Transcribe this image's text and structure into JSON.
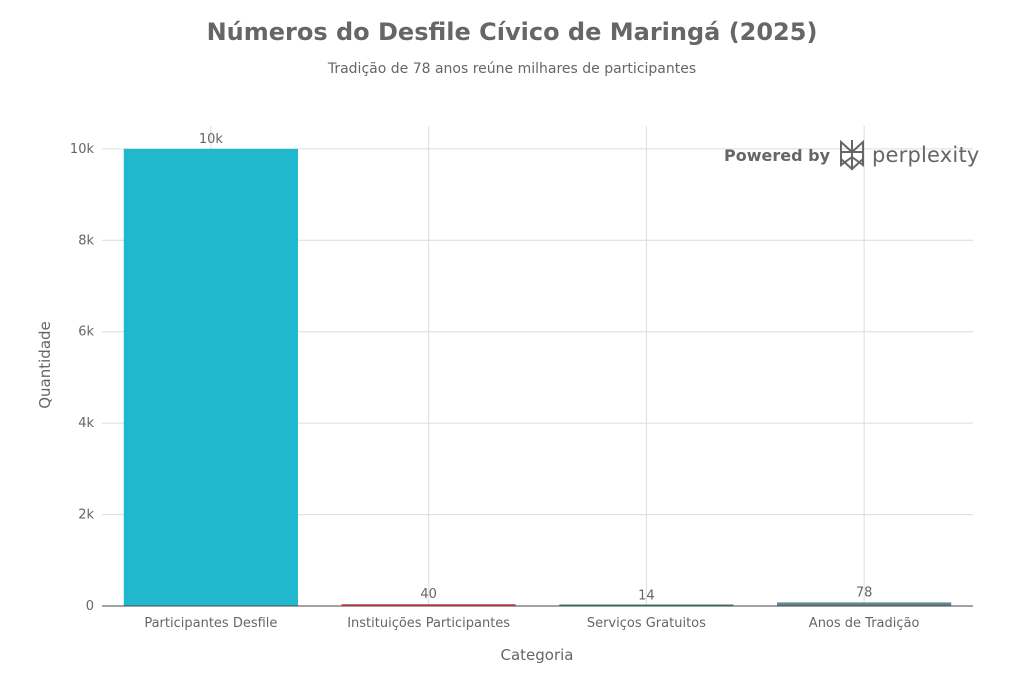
{
  "chart_data": {
    "type": "bar",
    "title": "Números do Desfile Cívico de Maringá (2025)",
    "subtitle": "Tradição de 78 anos reúne milhares de participantes",
    "xlabel": "Categoria",
    "ylabel": "Quantidade",
    "categories": [
      "Participantes Desfile",
      "Instituições Participantes",
      "Serviços Gratuitos",
      "Anos de Tradição"
    ],
    "values": [
      10000,
      40,
      14,
      78
    ],
    "data_labels": [
      "10k",
      "40",
      "14",
      "78"
    ],
    "colors": [
      "#1fb8cd",
      "#db4545",
      "#2e8b57",
      "#5d878f"
    ],
    "ylim": [
      0,
      10500
    ],
    "yticks": [
      0,
      2000,
      4000,
      6000,
      8000,
      10000
    ],
    "ytick_labels": [
      "0",
      "2k",
      "4k",
      "6k",
      "8k",
      "10k"
    ],
    "grid": true
  },
  "watermark": {
    "text": "Powered by",
    "brand": "perplexity"
  }
}
